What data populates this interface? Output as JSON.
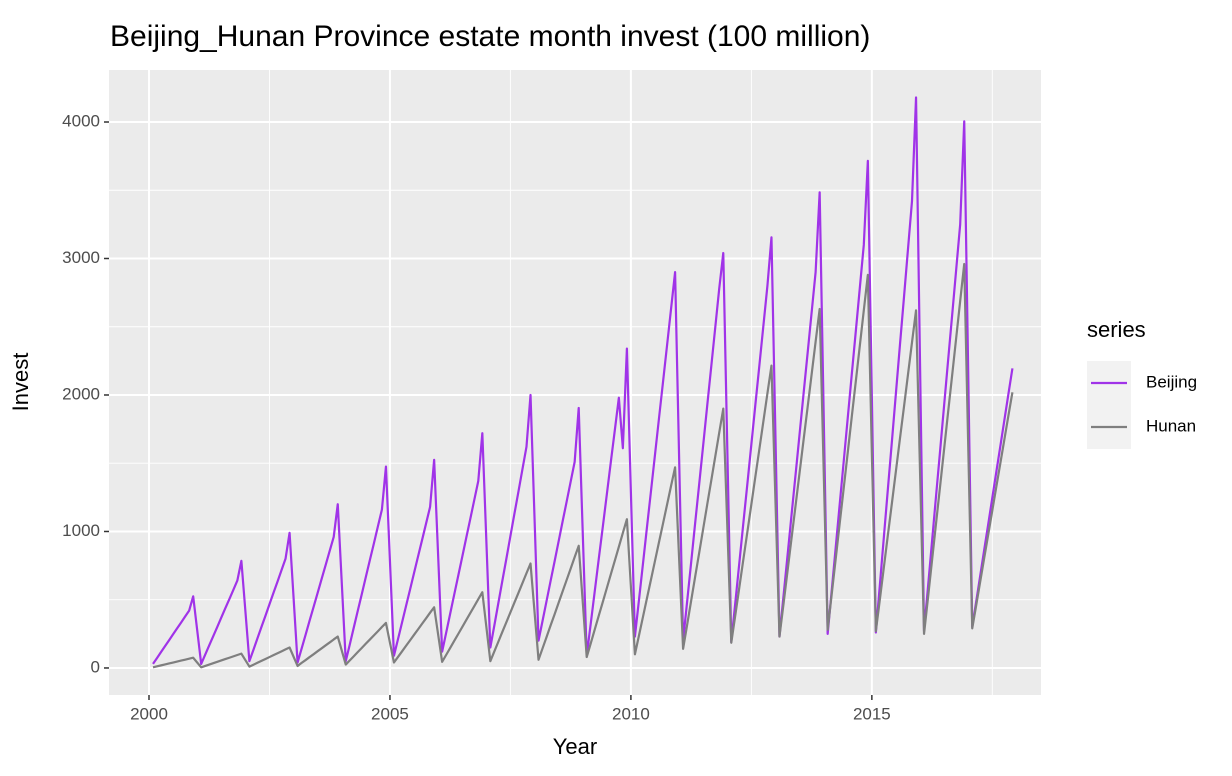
{
  "chart_data": {
    "type": "line",
    "title": "Beijing_Hunan Province estate month invest (100 million)",
    "x_label": "Year",
    "y_label": "Invest",
    "legend_title": "series",
    "legend_position": "right",
    "grid": true,
    "x": [
      2000.083,
      2000.167,
      2000.25,
      2000.333,
      2000.417,
      2000.5,
      2000.583,
      2000.667,
      2000.75,
      2000.833,
      2000.917,
      2001.083,
      2001.167,
      2001.25,
      2001.333,
      2001.417,
      2001.5,
      2001.583,
      2001.667,
      2001.75,
      2001.833,
      2001.917,
      2002.083,
      2002.167,
      2002.25,
      2002.333,
      2002.417,
      2002.5,
      2002.583,
      2002.667,
      2002.75,
      2002.833,
      2002.917,
      2003.083,
      2003.167,
      2003.25,
      2003.333,
      2003.417,
      2003.5,
      2003.583,
      2003.667,
      2003.75,
      2003.833,
      2003.917,
      2004.083,
      2004.167,
      2004.25,
      2004.333,
      2004.417,
      2004.5,
      2004.583,
      2004.667,
      2004.75,
      2004.833,
      2004.917,
      2005.083,
      2005.167,
      2005.25,
      2005.333,
      2005.417,
      2005.5,
      2005.583,
      2005.667,
      2005.75,
      2005.833,
      2005.917,
      2006.083,
      2006.167,
      2006.25,
      2006.333,
      2006.417,
      2006.5,
      2006.583,
      2006.667,
      2006.75,
      2006.833,
      2006.917,
      2007.083,
      2007.167,
      2007.25,
      2007.333,
      2007.417,
      2007.5,
      2007.583,
      2007.667,
      2007.75,
      2007.833,
      2007.917,
      2008.083,
      2008.167,
      2008.25,
      2008.333,
      2008.417,
      2008.5,
      2008.583,
      2008.667,
      2008.75,
      2008.833,
      2008.917,
      2009.083,
      2009.167,
      2009.25,
      2009.333,
      2009.417,
      2009.5,
      2009.583,
      2009.667,
      2009.75,
      2009.833,
      2009.917,
      2010.083,
      2010.167,
      2010.25,
      2010.333,
      2010.417,
      2010.5,
      2010.583,
      2010.667,
      2010.75,
      2010.833,
      2010.917,
      2011.083,
      2011.167,
      2011.25,
      2011.333,
      2011.417,
      2011.5,
      2011.583,
      2011.667,
      2011.75,
      2011.833,
      2011.917,
      2012.083,
      2012.167,
      2012.25,
      2012.333,
      2012.417,
      2012.5,
      2012.583,
      2012.667,
      2012.75,
      2012.833,
      2012.917,
      2013.083,
      2013.167,
      2013.25,
      2013.333,
      2013.417,
      2013.5,
      2013.583,
      2013.667,
      2013.75,
      2013.833,
      2013.917,
      2014.083,
      2014.167,
      2014.25,
      2014.333,
      2014.417,
      2014.5,
      2014.583,
      2014.667,
      2014.75,
      2014.833,
      2014.917,
      2015.083,
      2015.167,
      2015.25,
      2015.333,
      2015.417,
      2015.5,
      2015.583,
      2015.667,
      2015.75,
      2015.833,
      2015.917,
      2016.083,
      2016.167,
      2016.25,
      2016.333,
      2016.417,
      2016.5,
      2016.583,
      2016.667,
      2016.75,
      2016.833,
      2016.917,
      2017.083,
      2017.167,
      2017.25,
      2017.333,
      2017.417,
      2017.5,
      2017.583,
      2017.667,
      2017.75,
      2017.833,
      2017.917
    ],
    "series": [
      {
        "name": "Beijing",
        "color": "#a033e8",
        "values": [
          30,
          73,
          117,
          160,
          203,
          247,
          290,
          333,
          377,
          420,
          525,
          30,
          98,
          166,
          233,
          301,
          369,
          437,
          504,
          572,
          640,
          785,
          50,
          133,
          217,
          300,
          383,
          467,
          550,
          633,
          717,
          800,
          990,
          40,
          142,
          244,
          347,
          449,
          551,
          653,
          756,
          858,
          960,
          1200,
          50,
          173,
          297,
          420,
          543,
          667,
          790,
          913,
          1037,
          1160,
          1475,
          90,
          211,
          332,
          453,
          574,
          696,
          817,
          938,
          1059,
          1180,
          1525,
          120,
          259,
          398,
          537,
          676,
          814,
          953,
          1092,
          1231,
          1370,
          1720,
          150,
          313,
          477,
          640,
          803,
          967,
          1130,
          1293,
          1457,
          1620,
          2000,
          200,
          346,
          491,
          637,
          782,
          928,
          1074,
          1219,
          1365,
          1510,
          1905,
          90,
          326,
          563,
          799,
          1035,
          1271,
          1508,
          1744,
          1980,
          1610,
          2340,
          230,
          497,
          763,
          1030,
          1297,
          1563,
          1830,
          2097,
          2363,
          2630,
          2900,
          200,
          487,
          773,
          1060,
          1347,
          1633,
          1920,
          2207,
          2493,
          2780,
          3040,
          190,
          480,
          770,
          1060,
          1350,
          1640,
          1930,
          2220,
          2510,
          2800,
          3155,
          230,
          527,
          823,
          1120,
          1417,
          1713,
          2010,
          2307,
          2603,
          2900,
          3485,
          250,
          567,
          883,
          1200,
          1517,
          1833,
          2150,
          2467,
          2783,
          3100,
          3715,
          260,
          611,
          962,
          1313,
          1664,
          2016,
          2367,
          2718,
          3069,
          3420,
          4180,
          270,
          601,
          932,
          1263,
          1594,
          1926,
          2257,
          2588,
          2919,
          3250,
          4005,
          300,
          490,
          679,
          869,
          1058,
          1248,
          1437,
          1627,
          1816,
          2006,
          2195
        ]
      },
      {
        "name": "Hunan",
        "color": "#7f7f7f",
        "values": [
          5,
          12,
          19,
          26,
          33,
          40,
          47,
          54,
          61,
          68,
          75,
          5,
          15,
          25,
          35,
          45,
          55,
          65,
          75,
          85,
          95,
          105,
          10,
          24,
          38,
          52,
          66,
          80,
          94,
          108,
          122,
          136,
          150,
          15,
          37,
          58,
          80,
          101,
          123,
          144,
          166,
          187,
          209,
          230,
          25,
          56,
          86,
          117,
          147,
          178,
          208,
          239,
          269,
          300,
          330,
          40,
          81,
          121,
          162,
          202,
          243,
          283,
          324,
          364,
          405,
          445,
          45,
          96,
          147,
          198,
          249,
          300,
          351,
          402,
          453,
          504,
          555,
          50,
          122,
          193,
          265,
          336,
          408,
          479,
          551,
          622,
          694,
          765,
          60,
          144,
          227,
          311,
          394,
          478,
          561,
          645,
          728,
          812,
          895,
          80,
          181,
          282,
          383,
          484,
          585,
          686,
          787,
          888,
          989,
          1090,
          100,
          237,
          374,
          511,
          648,
          785,
          922,
          1059,
          1196,
          1333,
          1470,
          140,
          316,
          492,
          668,
          844,
          1020,
          1196,
          1372,
          1548,
          1724,
          1900,
          185,
          388,
          591,
          794,
          997,
          1200,
          1403,
          1606,
          1809,
          2012,
          2215,
          230,
          470,
          710,
          950,
          1190,
          1430,
          1670,
          1910,
          2150,
          2390,
          2630,
          280,
          540,
          800,
          1060,
          1320,
          1580,
          1840,
          2100,
          2360,
          2620,
          2880,
          270,
          505,
          740,
          975,
          1210,
          1445,
          1680,
          1915,
          2150,
          2385,
          2620,
          250,
          521,
          792,
          1063,
          1334,
          1605,
          1876,
          2147,
          2418,
          2689,
          2960,
          290,
          463,
          636,
          809,
          982,
          1155,
          1328,
          1501,
          1674,
          1847,
          2020
        ]
      }
    ],
    "xlim": [
      1999.17,
      2018.51
    ],
    "xticks": [
      2000,
      2005,
      2010,
      2015
    ],
    "x_minor_ticks": [
      2002.5,
      2007.5,
      2012.5,
      2017.5
    ],
    "ylim": [
      -198,
      4381
    ],
    "yticks": [
      0,
      1000,
      2000,
      3000,
      4000
    ],
    "y_minor_ticks": [
      500,
      1500,
      2500,
      3500
    ]
  }
}
